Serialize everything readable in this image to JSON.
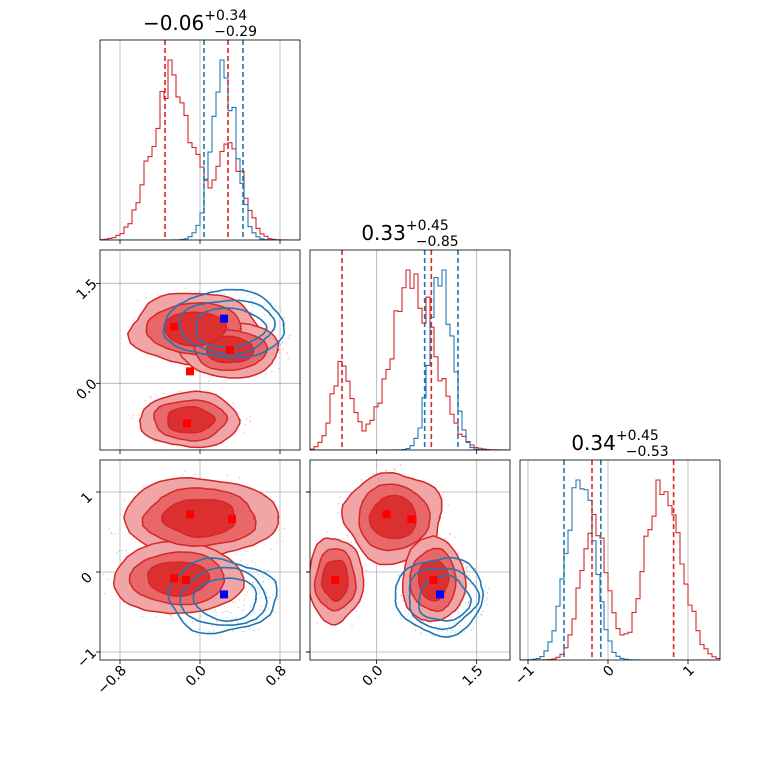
{
  "chart_data": {
    "type": "corner",
    "colors": {
      "red": "#d62728",
      "blue": "#1f77b4",
      "red_fill_light": "#f0a5a6",
      "red_fill_mid": "#e86869",
      "red_fill_dark": "#dc2f30",
      "marker_blue": "#0000ff",
      "marker_red": "#ff0000"
    },
    "parameters": [
      {
        "index": 0,
        "title": {
          "main": "−0.06",
          "sup": "+0.34",
          "sub": "−0.29"
        },
        "range": [
          -1.0,
          1.0
        ],
        "ticks": [
          -0.8,
          0.0,
          0.8
        ],
        "tick_labels": [
          "−0.8",
          "0.0",
          "0.8"
        ]
      },
      {
        "index": 1,
        "title": {
          "main": "0.33",
          "sup": "+0.45",
          "sub": "−0.85"
        },
        "range": [
          -1.0,
          2.0
        ],
        "ticks": [
          0.0,
          1.5
        ],
        "tick_labels": [
          "0.0",
          "1.5"
        ]
      },
      {
        "index": 2,
        "title": {
          "main": "0.34",
          "sup": "+0.45",
          "sub": "−0.53"
        },
        "range": [
          -1.1,
          1.4
        ],
        "ticks": [
          -1,
          0,
          1
        ],
        "tick_labels": [
          "−1",
          "0",
          "1"
        ]
      }
    ],
    "histograms": [
      {
        "param": 0,
        "red_lines": [
          -0.35,
          0.28
        ],
        "blue_lines": [
          0.04,
          0.43
        ],
        "red_components": [
          {
            "mu": -0.28,
            "sigma": 0.2,
            "w": 1.0
          },
          {
            "mu": 0.3,
            "sigma": 0.14,
            "w": 0.55
          }
        ],
        "blue_components": [
          {
            "mu": 0.24,
            "sigma": 0.12,
            "w": 1.0
          }
        ]
      },
      {
        "param": 1,
        "red_lines": [
          -0.52,
          0.82
        ],
        "blue_lines": [
          0.72,
          1.22
        ],
        "red_components": [
          {
            "mu": -0.52,
            "sigma": 0.15,
            "w": 0.5
          },
          {
            "mu": 0.55,
            "sigma": 0.33,
            "w": 1.0
          }
        ],
        "blue_components": [
          {
            "mu": 0.97,
            "sigma": 0.16,
            "w": 1.0
          }
        ]
      },
      {
        "param": 2,
        "red_lines": [
          -0.2,
          0.82
        ],
        "blue_lines": [
          -0.55,
          -0.09
        ],
        "red_components": [
          {
            "mu": -0.18,
            "sigma": 0.16,
            "w": 0.75
          },
          {
            "mu": 0.7,
            "sigma": 0.22,
            "w": 1.0
          }
        ],
        "blue_components": [
          {
            "mu": -0.35,
            "sigma": 0.17,
            "w": 1.0
          }
        ]
      }
    ],
    "pairs": [
      {
        "x": 0,
        "y": 1,
        "red_blobs": [
          {
            "cx": -0.05,
            "cy": 0.82,
            "rx": 0.55,
            "ry": 0.45
          },
          {
            "cx": -0.1,
            "cy": -0.55,
            "rx": 0.42,
            "ry": 0.35
          },
          {
            "cx": 0.3,
            "cy": 0.5,
            "rx": 0.42,
            "ry": 0.35
          }
        ],
        "blue_blobs": [
          {
            "cx": 0.25,
            "cy": 0.88,
            "rx": 0.5,
            "ry": 0.42
          }
        ],
        "red_markers": [
          [
            -0.26,
            0.85
          ],
          [
            -0.1,
            0.18
          ],
          [
            -0.13,
            -0.6
          ],
          [
            0.3,
            0.5
          ]
        ],
        "blue_markers": [
          [
            0.24,
            0.97
          ]
        ]
      },
      {
        "x": 0,
        "y": 2,
        "red_blobs": [
          {
            "cx": 0.0,
            "cy": 0.68,
            "rx": 0.65,
            "ry": 0.42
          },
          {
            "cx": -0.22,
            "cy": -0.08,
            "rx": 0.55,
            "ry": 0.38
          }
        ],
        "blue_blobs": [
          {
            "cx": 0.22,
            "cy": -0.3,
            "rx": 0.45,
            "ry": 0.38
          }
        ],
        "red_markers": [
          [
            -0.1,
            0.72
          ],
          [
            0.32,
            0.66
          ],
          [
            -0.26,
            -0.08
          ],
          [
            -0.14,
            -0.1
          ]
        ],
        "blue_markers": [
          [
            0.24,
            -0.28
          ]
        ]
      },
      {
        "x": 1,
        "y": 2,
        "red_blobs": [
          {
            "cx": 0.25,
            "cy": 0.68,
            "rx": 0.62,
            "ry": 0.48
          },
          {
            "cx": -0.62,
            "cy": -0.1,
            "rx": 0.35,
            "ry": 0.45
          },
          {
            "cx": 0.85,
            "cy": -0.1,
            "rx": 0.4,
            "ry": 0.45
          }
        ],
        "blue_blobs": [
          {
            "cx": 0.95,
            "cy": -0.3,
            "rx": 0.55,
            "ry": 0.4
          }
        ],
        "red_markers": [
          [
            0.15,
            0.72
          ],
          [
            0.52,
            0.66
          ],
          [
            -0.62,
            -0.1
          ],
          [
            0.85,
            -0.1
          ]
        ],
        "blue_markers": [
          [
            0.95,
            -0.28
          ]
        ]
      }
    ],
    "grid": true,
    "legend": "none"
  }
}
